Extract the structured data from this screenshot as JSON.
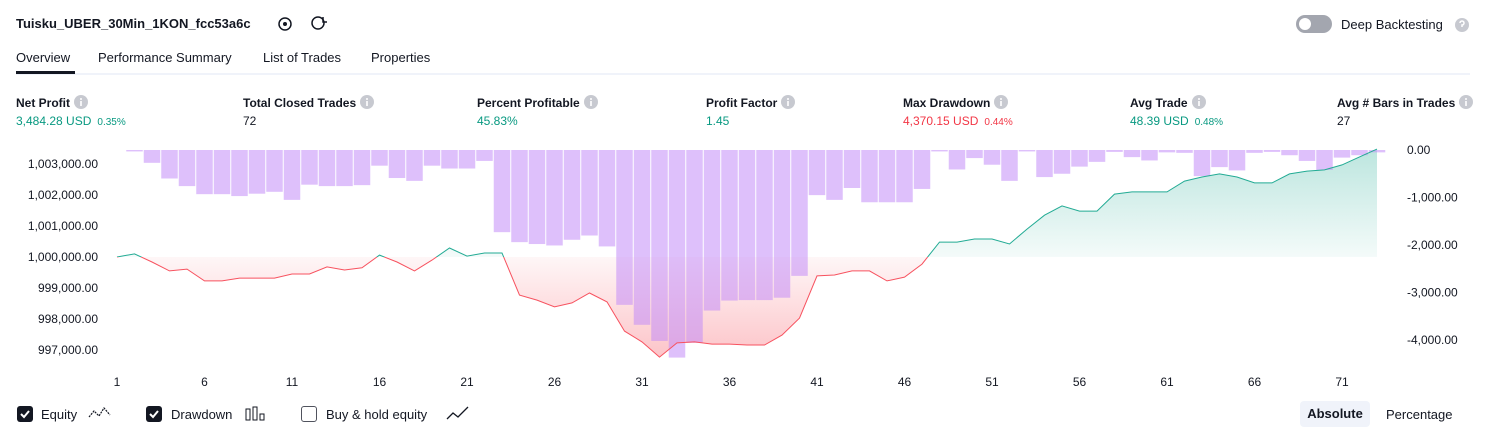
{
  "header": {
    "title": "Tuisku_UBER_30Min_1KON_fcc53a6c",
    "deep_backtesting": "Deep Backtesting"
  },
  "tabs": [
    "Overview",
    "Performance Summary",
    "List of Trades",
    "Properties"
  ],
  "metrics": [
    {
      "label": "Net Profit",
      "value": "3,484.28 USD",
      "percent": "0.35%",
      "color": "#089981"
    },
    {
      "label": "Total Closed Trades",
      "value": "72",
      "color": "#131722"
    },
    {
      "label": "Percent Profitable",
      "value": "45.83%",
      "color": "#089981"
    },
    {
      "label": "Profit Factor",
      "value": "1.45",
      "color": "#089981"
    },
    {
      "label": "Max Drawdown",
      "value": "4,370.15 USD",
      "percent": "0.44%",
      "color": "#f23645"
    },
    {
      "label": "Avg Trade",
      "value": "48.39 USD",
      "percent": "0.48%",
      "color": "#089981"
    },
    {
      "label": "Avg # Bars in Trades",
      "value": "27",
      "color": "#131722"
    }
  ],
  "chart_data": {
    "type": "combo",
    "baseline": 1000000,
    "x": [
      1,
      2,
      3,
      4,
      5,
      6,
      7,
      8,
      9,
      10,
      11,
      12,
      13,
      14,
      15,
      16,
      17,
      18,
      19,
      20,
      21,
      22,
      23,
      24,
      25,
      26,
      27,
      28,
      29,
      30,
      31,
      32,
      33,
      34,
      35,
      36,
      37,
      38,
      39,
      40,
      41,
      42,
      43,
      44,
      45,
      46,
      47,
      48,
      49,
      50,
      51,
      52,
      53,
      54,
      55,
      56,
      57,
      58,
      59,
      60,
      61,
      62,
      63,
      64,
      65,
      66,
      67,
      68,
      69,
      70,
      71,
      72,
      73
    ],
    "series": [
      {
        "name": "Equity",
        "type": "line",
        "color": "#22ab94",
        "negative_color": "#f7525f",
        "values": [
          1000000,
          1000100,
          999840,
          999550,
          999610,
          999230,
          999230,
          999320,
          999320,
          999320,
          999450,
          999450,
          999680,
          999580,
          999650,
          1000060,
          999840,
          999550,
          999900,
          1000290,
          1000030,
          1000130,
          1000130,
          998770,
          998610,
          998390,
          998520,
          998840,
          998550,
          997610,
          997260,
          996770,
          997230,
          997260,
          997190,
          997190,
          997160,
          997160,
          997480,
          998030,
          999390,
          999420,
          999550,
          999550,
          999230,
          999350,
          999770,
          1000480,
          1000480,
          1000580,
          1000580,
          1000420,
          1000900,
          1001350,
          1001650,
          1001480,
          1001480,
          1002030,
          1002100,
          1002100,
          1002100,
          1002450,
          1002580,
          1002680,
          1002580,
          1002390,
          1002390,
          1002680,
          1002770,
          1002810,
          1002970,
          1003230,
          1003480
        ]
      },
      {
        "name": "Drawdown",
        "type": "bar",
        "axis": "y2",
        "color": "#c28cf8",
        "values": [
          0,
          -30,
          -270,
          -600,
          -760,
          -930,
          -930,
          -970,
          -920,
          -880,
          -1050,
          -730,
          -760,
          -760,
          -740,
          -330,
          -590,
          -650,
          -330,
          -390,
          -390,
          -230,
          -1730,
          -1940,
          -1980,
          -2010,
          -1890,
          -1800,
          -2030,
          -3260,
          -3680,
          -4020,
          -4370,
          -4060,
          -3380,
          -3170,
          -3160,
          -3160,
          -3110,
          -2650,
          -950,
          -1050,
          -800,
          -1100,
          -1100,
          -1100,
          -820,
          -30,
          -410,
          -170,
          -310,
          -650,
          -30,
          -570,
          -500,
          -350,
          -250,
          -40,
          -150,
          -220,
          -50,
          -60,
          -550,
          -360,
          -430,
          -60,
          -40,
          -110,
          -230,
          -420,
          -160,
          -110,
          -50
        ]
      }
    ],
    "xlim": [
      1,
      73
    ],
    "xticks": [
      1,
      6,
      11,
      16,
      21,
      26,
      31,
      36,
      41,
      46,
      51,
      56,
      61,
      66,
      71
    ],
    "ylim": [
      996677,
      1003452
    ],
    "yticks": [
      {
        "value": 997000,
        "label": "997,000.00"
      },
      {
        "value": 998000,
        "label": "998,000.00"
      },
      {
        "value": 999000,
        "label": "999,000.00"
      },
      {
        "value": 1000000,
        "label": "1,000,000.00"
      },
      {
        "value": 1001000,
        "label": "1,001,000.00"
      },
      {
        "value": 1002000,
        "label": "1,002,000.00"
      },
      {
        "value": 1003000,
        "label": "1,003,000.00"
      }
    ],
    "y2lim": [
      -4421,
      0
    ],
    "y2ticks": [
      {
        "value": 0,
        "label": "0.00"
      },
      {
        "value": -1000,
        "label": "-1,000.00"
      },
      {
        "value": -2000,
        "label": "-2,000.00"
      },
      {
        "value": -3000,
        "label": "-3,000.00"
      },
      {
        "value": -4000,
        "label": "-4,000.00"
      }
    ]
  },
  "footer": {
    "buy_hold": "Buy & hold equity",
    "modes": [
      "Absolute",
      "Percentage"
    ]
  }
}
